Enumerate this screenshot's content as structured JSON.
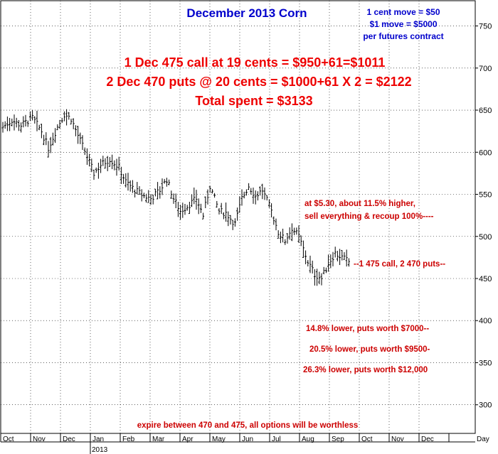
{
  "chart_data": {
    "type": "ohlc",
    "title": "December 2013 Corn",
    "info_lines": [
      "1 cent move = $50",
      "$1 move = $5000",
      "per futures contract"
    ],
    "headline_lines": [
      "1 Dec 475 call at 19 cents = $950+61=$1011",
      "2 Dec 470 puts @ 20 cents = $1000+61 X 2 = $2122",
      "Total spent = $3133"
    ],
    "annotations": [
      {
        "text": "at $5.30, about 11.5% higher,",
        "y": 551
      },
      {
        "text": "sell everything & recoup 100%----",
        "y": 525
      },
      {
        "text": "--1 475 call, 2 470 puts--",
        "y": 471
      },
      {
        "text": "14.8% lower, puts worth $7000--",
        "y": 399
      },
      {
        "text": "20.5% lower, puts worth $9500-",
        "y": 377
      },
      {
        "text": "26.3% lower, puts worth $12,000",
        "y": 354
      },
      {
        "text": "expire between 470 and 475, all options will be worthless",
        "y": 282
      }
    ],
    "y_ticks": [
      300,
      350,
      400,
      450,
      500,
      550,
      600,
      650,
      700,
      750
    ],
    "ylim": [
      266,
      780
    ],
    "x_labels": [
      "Oct",
      "Nov",
      "Dec",
      "Jan",
      "Feb",
      "Mar",
      "Apr",
      "May",
      "Jun",
      "Jul",
      "Aug",
      "Sep",
      "Oct",
      "Nov",
      "Dec",
      "Day"
    ],
    "x_sublabel": "2013",
    "x_sublabel_under": "Jan",
    "grid": true,
    "price_path": [
      [
        0,
        630
      ],
      [
        4,
        638
      ],
      [
        8,
        632
      ],
      [
        13,
        641
      ],
      [
        17,
        625
      ],
      [
        20,
        605
      ],
      [
        24,
        630
      ],
      [
        27,
        645
      ],
      [
        30,
        640
      ],
      [
        33,
        620
      ],
      [
        37,
        595
      ],
      [
        40,
        575
      ],
      [
        43,
        585
      ],
      [
        47,
        592
      ],
      [
        51,
        582
      ],
      [
        54,
        565
      ],
      [
        58,
        555
      ],
      [
        62,
        548
      ],
      [
        65,
        545
      ],
      [
        69,
        555
      ],
      [
        72,
        568
      ],
      [
        75,
        545
      ],
      [
        78,
        530
      ],
      [
        82,
        538
      ],
      [
        85,
        545
      ],
      [
        88,
        525
      ],
      [
        91,
        560
      ],
      [
        95,
        530
      ],
      [
        98,
        528
      ],
      [
        102,
        515
      ],
      [
        105,
        545
      ],
      [
        108,
        560
      ],
      [
        111,
        548
      ],
      [
        114,
        555
      ],
      [
        118,
        530
      ],
      [
        121,
        505
      ],
      [
        124,
        495
      ],
      [
        127,
        510
      ],
      [
        130,
        500
      ],
      [
        134,
        470
      ],
      [
        137,
        455
      ],
      [
        140,
        450
      ],
      [
        143,
        468
      ],
      [
        146,
        480
      ],
      [
        149,
        475
      ],
      [
        152,
        470
      ]
    ]
  }
}
